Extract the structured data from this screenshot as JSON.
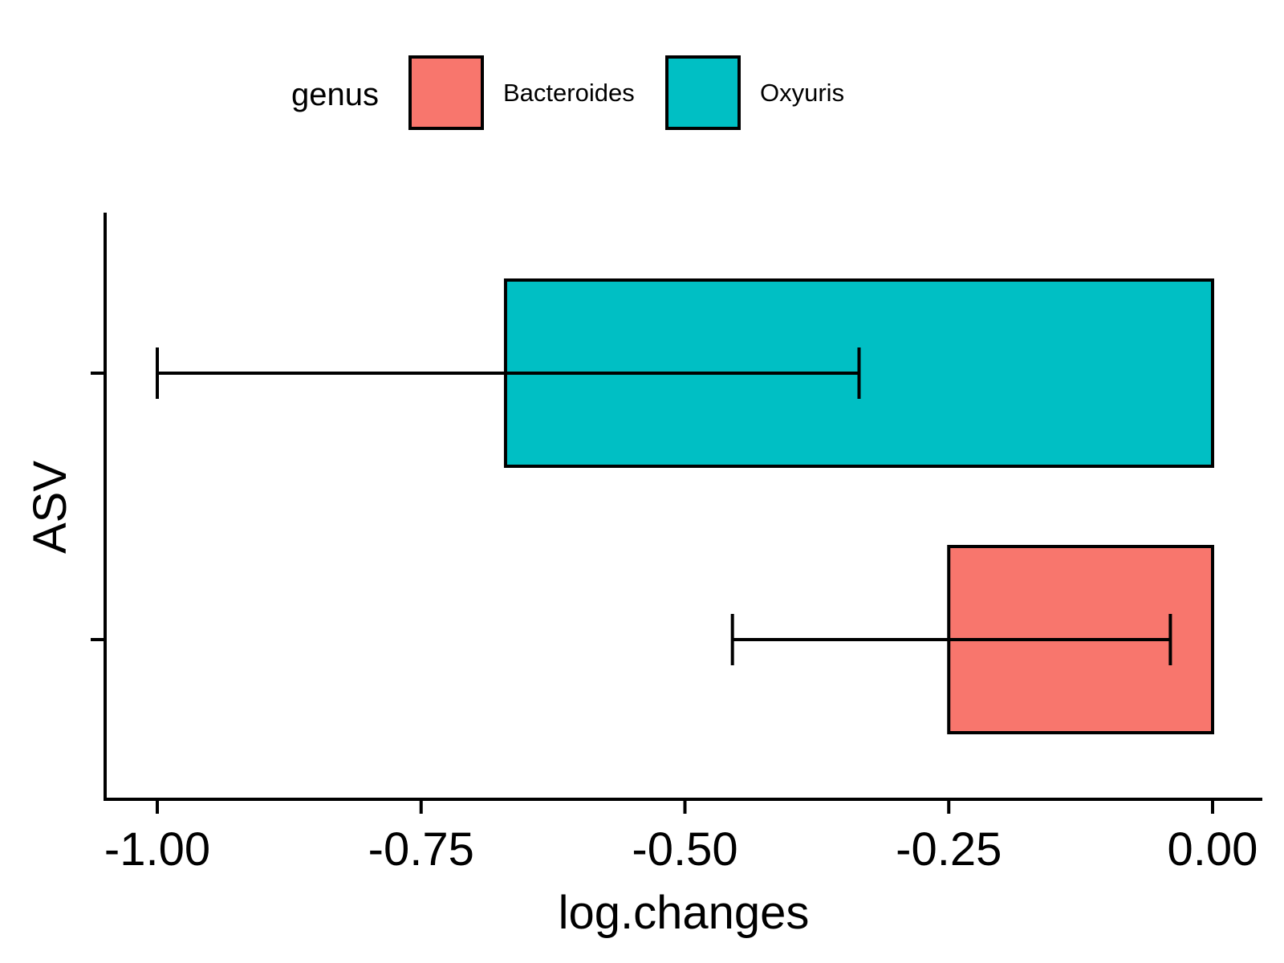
{
  "chart_data": {
    "type": "bar",
    "orientation": "horizontal",
    "title": "",
    "xlabel": "log.changes",
    "ylabel": "ASV",
    "xlim": [
      -1.05,
      0.05
    ],
    "xticks": [
      -1.0,
      -0.75,
      -0.5,
      -0.25,
      0.0
    ],
    "xtick_labels": [
      "-1.00",
      "-0.75",
      "-0.50",
      "-0.25",
      "0.00"
    ],
    "grid": false,
    "legend": {
      "title": "genus",
      "position": "top",
      "entries": [
        {
          "label": "Bacteroides",
          "color": "#F8766D"
        },
        {
          "label": "Oxyuris",
          "color": "#00BFC4"
        }
      ]
    },
    "bars": [
      {
        "genus": "Oxyuris",
        "value": -0.67,
        "error_low": -1.0,
        "error_high": -0.335,
        "color": "#00BFC4"
      },
      {
        "genus": "Bacteroides",
        "value": -0.25,
        "error_low": -0.455,
        "error_high": -0.04,
        "color": "#F8766D"
      }
    ]
  }
}
